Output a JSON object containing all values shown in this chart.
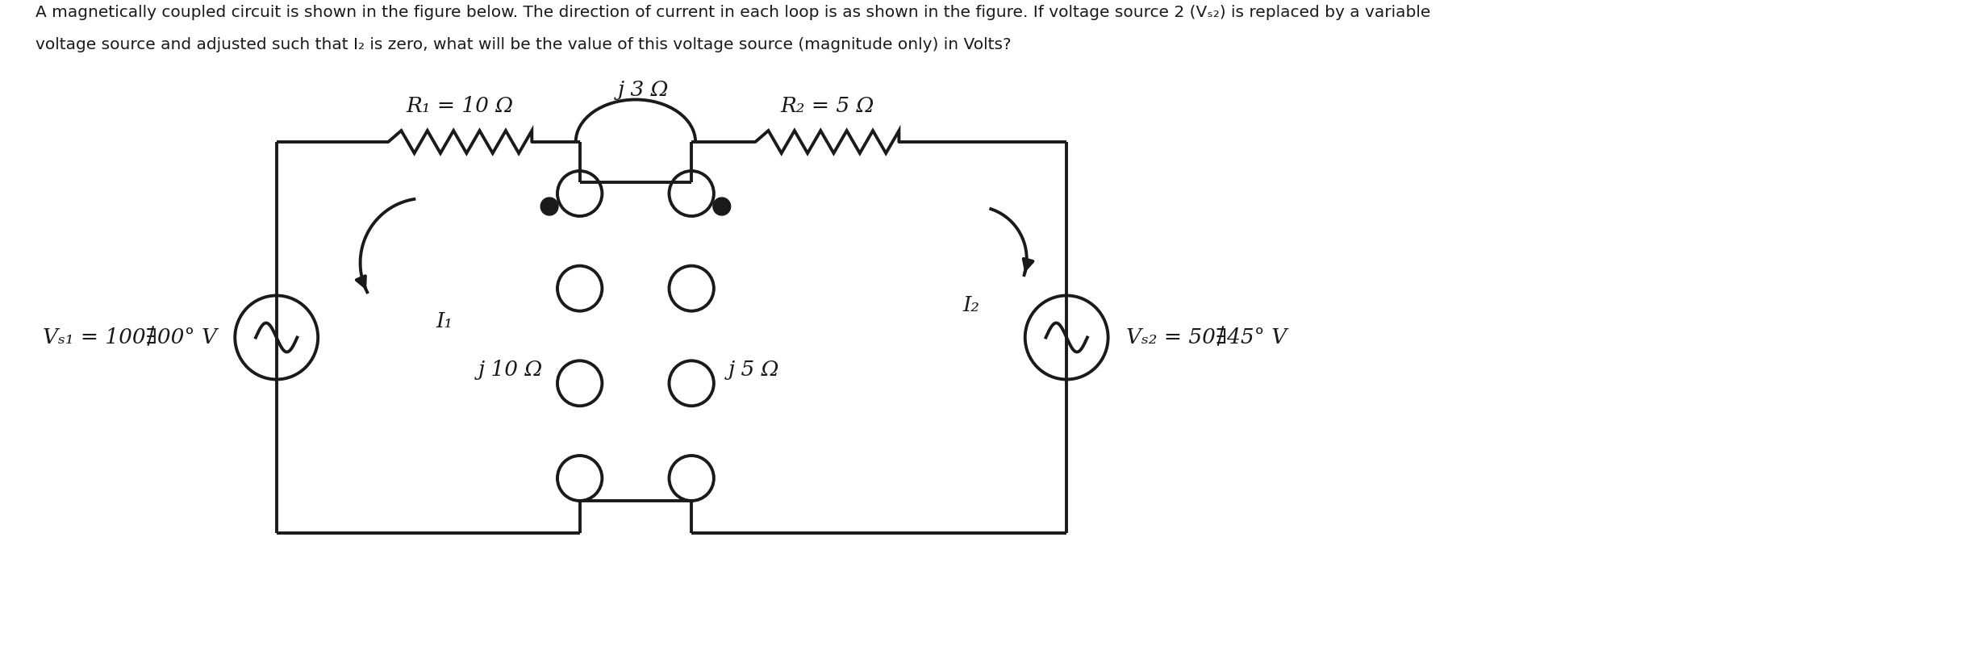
{
  "bg_color": "#ffffff",
  "line_color": "#1a1a1a",
  "R1_label": "R₁ = 10 Ω",
  "R2_label": "R₂ = 5 Ω",
  "jL1_label": "j 10 Ω",
  "jL2_label": "j 5 Ω",
  "jM_label": "j 3 Ω",
  "Vs1_label": "Vₛ₁ = 100∄00° V",
  "Vs2_label": "Vₛ₂ = 50∄45° V",
  "I1_label": "I₁",
  "I2_label": "I₂",
  "line1": "A magnetically coupled circuit is shown in the figure below. The direction of current in each loop is as shown in the figure. If voltage source 2 (Vₛ₂) is replaced by a variable",
  "line2": "voltage source and adjusted such that I₂ is zero, what will be the value of this voltage source (magnitude only) in Volts?"
}
